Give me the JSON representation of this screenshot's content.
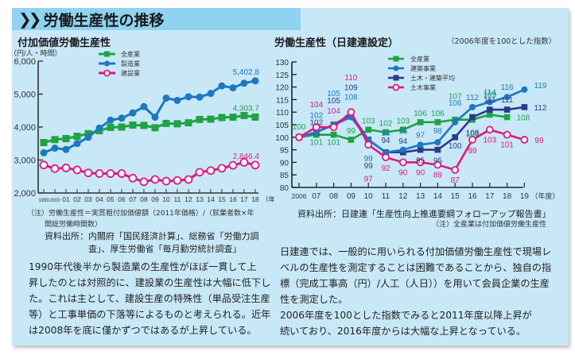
{
  "header": {
    "chevron": "》",
    "title": "労働生産性の推移"
  },
  "left": {
    "title": "付加価値労働生産性",
    "note_lines": [
      "（注）労働生産性＝実質粗付加価値額（2011年価格）/（就業者数×年",
      "間総労働時間数）"
    ],
    "source_lines": [
      "資料出所：内閣府「国民経済計算」、総務省「労働力調",
      "査」、厚生労働省「毎月勤労統計調査」"
    ],
    "body_lines": [
      "1990年代後半から製造業の生産性がほぼ一貫して上",
      "昇したのとは対照的に、建設業の生産性は大幅に低下し",
      "た。これは主として、建設生産の特殊性（単品受注生産",
      "等）と工事単価の下落等によるものと考えられる。近年",
      "は2008年を底に僅かずつではあるが上昇している。"
    ]
  },
  "right": {
    "title": "労働生産性（日建連設定）",
    "subtitle": "（2006年度を100とした指数）",
    "source": "資料出所：日建連「生産性向上推進要綱フォローアップ報告書」",
    "note": "（注）全産業は付加価値労働生産性",
    "body_lines": [
      "日建連では、一般的に用いられる付加価値労働生産性で現場レ",
      "ベルの生産性を測定することは困難であることから、独自の指",
      "標（完成工事高（円）/人工（人日））を用いて会員企業の生産",
      "性を測定した。",
      "2006年度を100とした指数でみると2011年度以降上昇が",
      "続いており、2016年度からは大幅な上昇となっている。"
    ]
  },
  "colors": {
    "green": "#1fa343",
    "blue": "#1c78c0",
    "navy": "#2b3a8c",
    "pink": "#e0187d"
  },
  "chart_data": [
    {
      "type": "line",
      "title": "付加価値労働生産性",
      "ylabel": "（円/人・時間）",
      "xlabel": "（年）",
      "ylim": [
        2000,
        6000
      ],
      "yticks": [
        2000,
        3000,
        4000,
        5000,
        6000
      ],
      "ytick_labels": [
        "2,000",
        "3,000",
        "4,000",
        "5,000",
        "6,000"
      ],
      "x": [
        "1999",
        "2000",
        "01",
        "02",
        "03",
        "04",
        "05",
        "06",
        "07",
        "08",
        "09",
        "10",
        "11",
        "12",
        "13",
        "14",
        "15",
        "16",
        "17",
        "18"
      ],
      "legend_position": "top-left",
      "series": [
        {
          "name": "全産業",
          "color": "green",
          "marker": "square",
          "values": [
            3530,
            3620,
            3650,
            3720,
            3800,
            3890,
            3990,
            4000,
            4060,
            4050,
            3980,
            4110,
            4100,
            4130,
            4230,
            4240,
            4290,
            4300,
            4350,
            4303.7
          ],
          "end_label": "4,303.7"
        },
        {
          "name": "製造業",
          "color": "blue",
          "marker": "circle",
          "values": [
            3220,
            3360,
            3320,
            3500,
            3690,
            3970,
            4210,
            4270,
            4430,
            4620,
            4300,
            4880,
            4810,
            4920,
            4910,
            5020,
            5250,
            5190,
            5330,
            5402.8
          ],
          "end_label": "5,402.8"
        },
        {
          "name": "建設業",
          "color": "pink",
          "marker": "open-circle",
          "values": [
            2850,
            2740,
            2760,
            2700,
            2610,
            2590,
            2590,
            2590,
            2450,
            2340,
            2410,
            2360,
            2380,
            2410,
            2630,
            2680,
            2750,
            2840,
            2930,
            2846.4
          ],
          "end_label": "2,846.4"
        }
      ]
    },
    {
      "type": "line",
      "title": "労働生産性（日建連設定）",
      "subtitle": "（2006年度を100とした指数）",
      "xlabel": "（年度）",
      "ylim": [
        80,
        130
      ],
      "yticks": [
        80,
        85,
        90,
        95,
        100,
        105,
        110,
        115,
        120,
        125,
        130
      ],
      "x": [
        "2006",
        "07",
        "08",
        "09",
        "10",
        "11",
        "12",
        "13",
        "14",
        "15",
        "16",
        "17",
        "18",
        "19"
      ],
      "legend_position": "top-center",
      "series": [
        {
          "name": "全産業",
          "color": "green",
          "marker": "square",
          "values": [
            100,
            101,
            101,
            99,
            103,
            102,
            103,
            106,
            106,
            107,
            107,
            109,
            108,
            null
          ]
        },
        {
          "name": "建築事業",
          "color": "blue",
          "marker": "circle",
          "values": [
            100,
            102,
            105,
            108,
            99,
            94,
            95,
            97,
            98,
            106,
            112,
            114,
            116,
            119
          ]
        },
        {
          "name": "土木・建築平均",
          "color": "navy",
          "marker": "square",
          "values": [
            100,
            102,
            105,
            109,
            99,
            94,
            94,
            95,
            95,
            100,
            108,
            111,
            111,
            112
          ]
        },
        {
          "name": "土木事業",
          "color": "pink",
          "marker": "open-circle",
          "values": [
            100,
            104,
            104,
            110,
            97,
            92,
            90,
            90,
            89,
            87,
            99,
            103,
            101,
            99
          ]
        }
      ]
    }
  ]
}
